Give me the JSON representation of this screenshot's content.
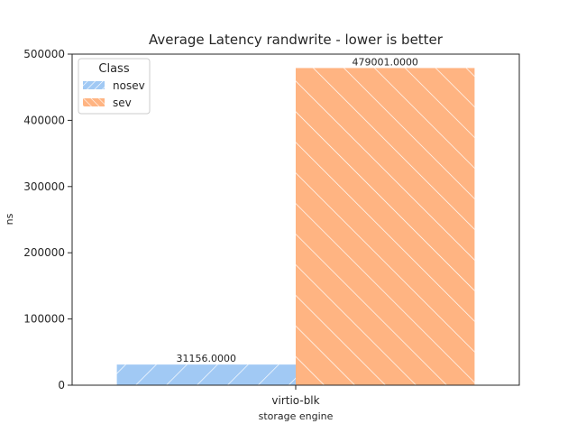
{
  "chart_data": {
    "type": "bar",
    "title": "Average Latency randwrite - lower is better",
    "xlabel": "storage engine",
    "ylabel": "ns",
    "categories": [
      "virtio-blk"
    ],
    "series": [
      {
        "name": "nosev",
        "values": [
          31156.0
        ],
        "label": "31156.0000",
        "color": "#a1c9f4",
        "hatch": "forward-diagonal"
      },
      {
        "name": "sev",
        "values": [
          479001.0
        ],
        "label": "479001.0000",
        "color": "#ffb482",
        "hatch": "back-diagonal"
      }
    ],
    "ylim": [
      0,
      500000
    ],
    "yticks": [
      0,
      100000,
      200000,
      300000,
      400000,
      500000
    ],
    "ytick_labels": [
      "0",
      "100000",
      "200000",
      "300000",
      "400000",
      "500000"
    ],
    "grid": false,
    "legend": {
      "title": "Class",
      "placement": "top-left"
    }
  }
}
